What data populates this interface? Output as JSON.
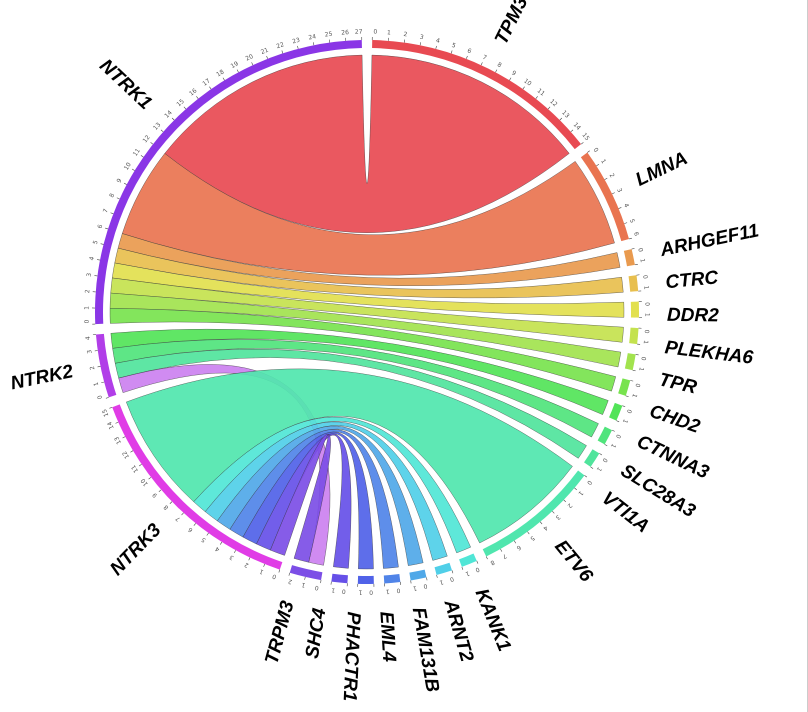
{
  "chart_data": {
    "type": "chord",
    "sectors": [
      {
        "name": "TPM3",
        "value": 15,
        "color": "#e84a52"
      },
      {
        "name": "LMNA",
        "value": 6,
        "color": "#e97450"
      },
      {
        "name": "ARHGEF11",
        "value": 1,
        "color": "#e99a4e"
      },
      {
        "name": "CTRC",
        "value": 1,
        "color": "#e8bf4e"
      },
      {
        "name": "DDR2",
        "value": 1,
        "color": "#e2e04e"
      },
      {
        "name": "PLEKHA6",
        "value": 1,
        "color": "#c4e24e"
      },
      {
        "name": "TPR",
        "value": 1,
        "color": "#a2e34e"
      },
      {
        "name": "CHD2",
        "value": 1,
        "color": "#78e34e"
      },
      {
        "name": "CTNNA3",
        "value": 1,
        "color": "#52e458"
      },
      {
        "name": "SLC28A3",
        "value": 1,
        "color": "#50e47c"
      },
      {
        "name": "VTI1A",
        "value": 1,
        "color": "#50e49c"
      },
      {
        "name": "ETV6",
        "value": 8,
        "color": "#50e6ae"
      },
      {
        "name": "KANK1",
        "value": 1,
        "color": "#50e6d6"
      },
      {
        "name": "ARNT2",
        "value": 1,
        "color": "#50cfe8"
      },
      {
        "name": "FAM131B",
        "value": 1,
        "color": "#50a8e8"
      },
      {
        "name": "EML4",
        "value": 1,
        "color": "#5084e8"
      },
      {
        "name": "PHACTR1",
        "value": 1,
        "color": "#5062e8"
      },
      {
        "name": "SHC4",
        "value": 1,
        "color": "#6650e8"
      },
      {
        "name": "TRPM3",
        "value": 2,
        "color": "#7c4ee6"
      },
      {
        "name": "NTRK3",
        "value": 15,
        "color": "#e03ce6"
      },
      {
        "name": "NTRK2",
        "value": 4,
        "color": "#b13ee8"
      },
      {
        "name": "NTRK1",
        "value": 27,
        "color": "#8a36e6"
      }
    ],
    "links": [
      {
        "source": "NTRK1",
        "target": "TPM3",
        "value": 15
      },
      {
        "source": "NTRK1",
        "target": "LMNA",
        "value": 6
      },
      {
        "source": "NTRK1",
        "target": "ARHGEF11",
        "value": 1
      },
      {
        "source": "NTRK1",
        "target": "CTRC",
        "value": 1
      },
      {
        "source": "NTRK1",
        "target": "DDR2",
        "value": 1
      },
      {
        "source": "NTRK1",
        "target": "PLEKHA6",
        "value": 1
      },
      {
        "source": "NTRK1",
        "target": "TPR",
        "value": 1
      },
      {
        "source": "NTRK1",
        "target": "CHD2",
        "value": 1
      },
      {
        "source": "NTRK2",
        "target": "CTNNA3",
        "value": 1
      },
      {
        "source": "NTRK2",
        "target": "SLC28A3",
        "value": 1
      },
      {
        "source": "NTRK2",
        "target": "VTI1A",
        "value": 1
      },
      {
        "source": "NTRK2",
        "target": "TRPM3",
        "value": 1
      },
      {
        "source": "NTRK3",
        "target": "ETV6",
        "value": 8
      },
      {
        "source": "NTRK3",
        "target": "KANK1",
        "value": 1
      },
      {
        "source": "NTRK3",
        "target": "ARNT2",
        "value": 1
      },
      {
        "source": "NTRK3",
        "target": "FAM131B",
        "value": 1
      },
      {
        "source": "NTRK3",
        "target": "EML4",
        "value": 1
      },
      {
        "source": "NTRK3",
        "target": "PHACTR1",
        "value": 1
      },
      {
        "source": "NTRK3",
        "target": "SHC4",
        "value": 1
      },
      {
        "source": "NTRK3",
        "target": "TRPM3",
        "value": 1
      }
    ]
  }
}
